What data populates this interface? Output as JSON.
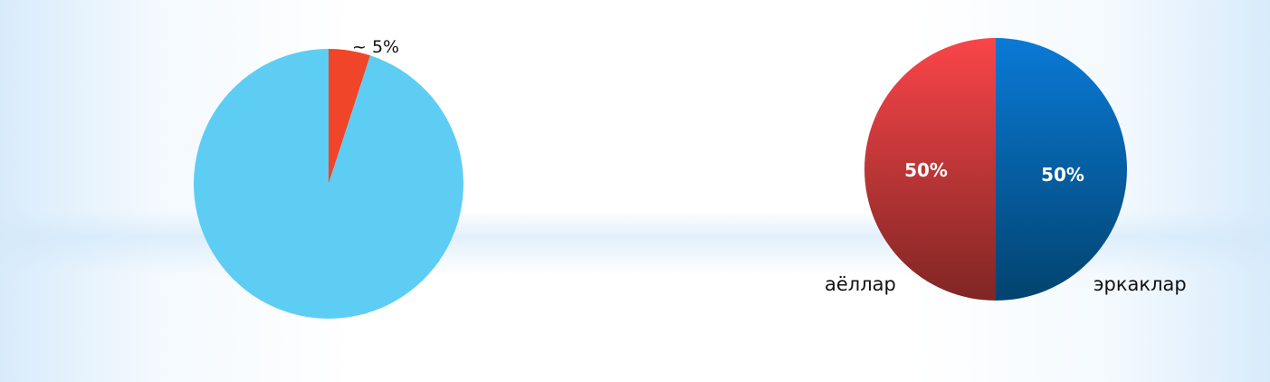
{
  "chart_data": [
    {
      "type": "pie",
      "title": "",
      "slices": [
        {
          "label": "",
          "value": 95,
          "color": "#5ecdf4"
        },
        {
          "label": "~ 5%",
          "value": 5,
          "color": "#f04528"
        }
      ],
      "annotation": "~ 5%"
    },
    {
      "type": "pie",
      "title": "",
      "slices": [
        {
          "label": "эркаклар",
          "value": 50,
          "data_label": "50%",
          "color_top": "#0a7ad6",
          "color_bottom": "#02436f"
        },
        {
          "label": "аёллар",
          "value": 50,
          "data_label": "50%",
          "color_top": "#fa4549",
          "color_bottom": "#7f2624"
        }
      ]
    }
  ]
}
